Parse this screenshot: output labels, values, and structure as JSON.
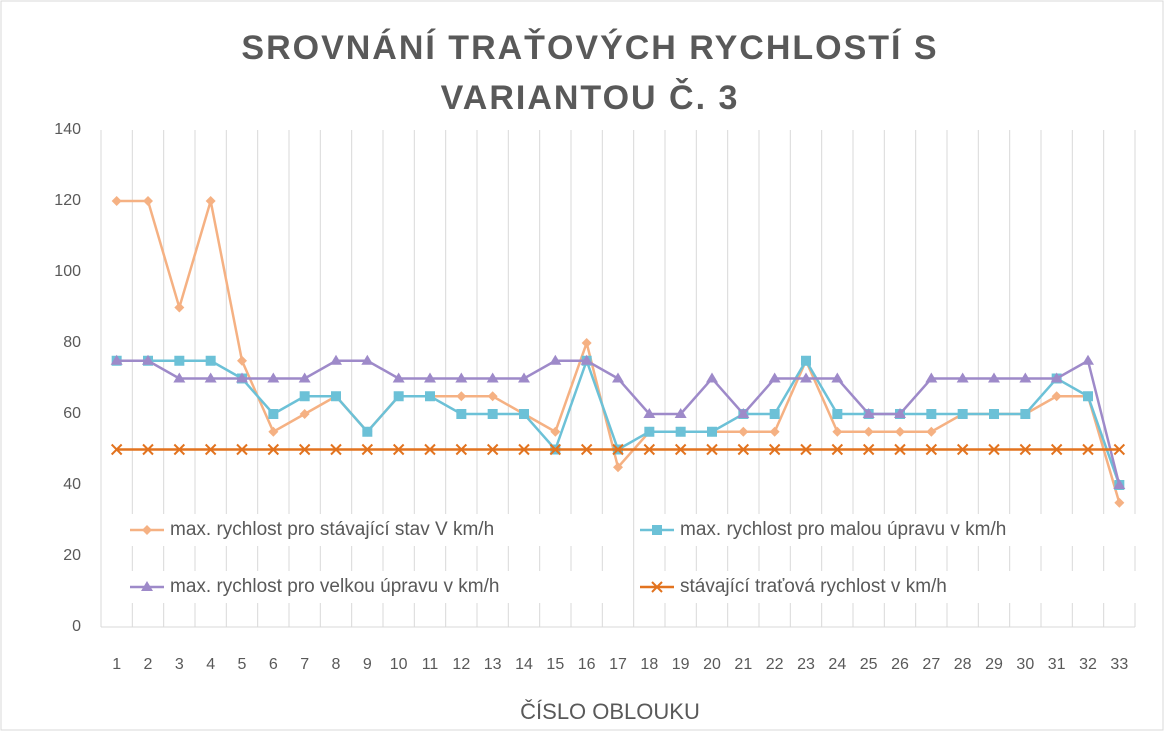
{
  "chart_data": {
    "type": "line",
    "title": [
      "SROVNÁNÍ TRAŤOVÝCH RYCHLOSTÍ S",
      "VARIANTOU Č. 3"
    ],
    "x_label": "ČÍSLO OBLOUKU",
    "categories": [
      "1",
      "2",
      "3",
      "4",
      "5",
      "6",
      "7",
      "8",
      "9",
      "10",
      "11",
      "12",
      "13",
      "14",
      "15",
      "16",
      "17",
      "18",
      "19",
      "20",
      "21",
      "22",
      "23",
      "24",
      "25",
      "26",
      "27",
      "28",
      "29",
      "30",
      "31",
      "32",
      "33"
    ],
    "ylim": [
      0,
      140
    ],
    "yticks": [
      0,
      20,
      40,
      60,
      80,
      100,
      120,
      140
    ],
    "grid": "vertical",
    "series": [
      {
        "name": "max. rychlost pro stávající stav V km/h",
        "color": "#f5b183",
        "marker": "diamond",
        "values": [
          120,
          120,
          90,
          120,
          75,
          55,
          60,
          65,
          55,
          65,
          65,
          65,
          65,
          60,
          55,
          80,
          45,
          55,
          55,
          55,
          55,
          55,
          75,
          55,
          55,
          55,
          55,
          60,
          60,
          60,
          65,
          65,
          35
        ]
      },
      {
        "name": "max. rychlost pro malou úpravu v km/h",
        "color": "#6cc1d7",
        "marker": "square",
        "values": [
          75,
          75,
          75,
          75,
          70,
          60,
          65,
          65,
          55,
          65,
          65,
          60,
          60,
          60,
          50,
          75,
          50,
          55,
          55,
          55,
          60,
          60,
          75,
          60,
          60,
          60,
          60,
          60,
          60,
          60,
          70,
          65,
          40
        ]
      },
      {
        "name": "max. rychlost pro velkou úpravu v km/h",
        "color": "#9e8ac9",
        "marker": "triangle",
        "values": [
          75,
          75,
          70,
          70,
          70,
          70,
          70,
          75,
          75,
          70,
          70,
          70,
          70,
          70,
          75,
          75,
          70,
          60,
          60,
          70,
          60,
          70,
          70,
          70,
          60,
          60,
          70,
          70,
          70,
          70,
          70,
          75,
          40
        ]
      },
      {
        "name": "stávající traťová rychlost v km/h",
        "color": "#e2731f",
        "marker": "x",
        "values": [
          50,
          50,
          50,
          50,
          50,
          50,
          50,
          50,
          50,
          50,
          50,
          50,
          50,
          50,
          50,
          50,
          50,
          50,
          50,
          50,
          50,
          50,
          50,
          50,
          50,
          50,
          50,
          50,
          50,
          50,
          50,
          50,
          50
        ]
      }
    ]
  }
}
